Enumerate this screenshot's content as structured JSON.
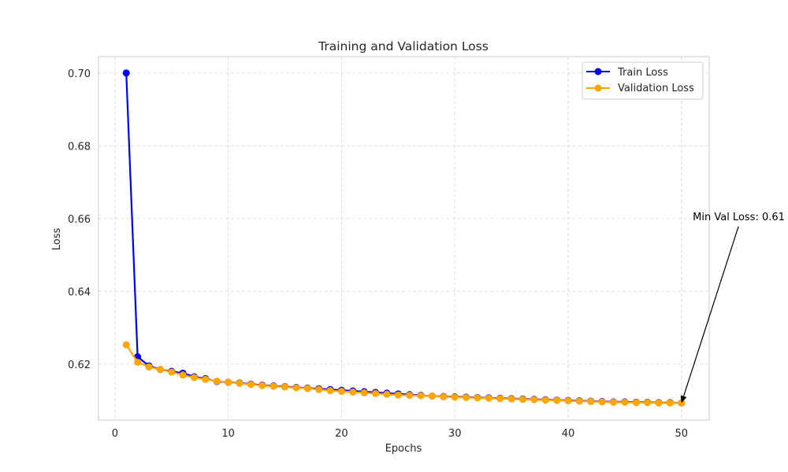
{
  "chart_data": {
    "type": "line",
    "title": "Training and Validation Loss",
    "xlabel": "Epochs",
    "ylabel": "Loss",
    "xlim": [
      -1.45,
      52.45
    ],
    "ylim": [
      0.6046,
      0.7045
    ],
    "xticks": [
      0,
      10,
      20,
      30,
      40,
      50
    ],
    "yticks": [
      0.62,
      0.64,
      0.66,
      0.68,
      0.7
    ],
    "xtick_labels": [
      "0",
      "10",
      "20",
      "30",
      "40",
      "50"
    ],
    "ytick_labels": [
      "0.62",
      "0.64",
      "0.66",
      "0.68",
      "0.70"
    ],
    "grid": true,
    "legend_position": "top-right",
    "x": [
      1,
      2,
      3,
      4,
      5,
      6,
      7,
      8,
      9,
      10,
      11,
      12,
      13,
      14,
      15,
      16,
      17,
      18,
      19,
      20,
      21,
      22,
      23,
      24,
      25,
      26,
      27,
      28,
      29,
      30,
      31,
      32,
      33,
      34,
      35,
      36,
      37,
      38,
      39,
      40,
      41,
      42,
      43,
      44,
      45,
      46,
      47,
      48,
      49,
      50
    ],
    "series": [
      {
        "name": "Train Loss",
        "color": "#0000ff",
        "values": [
          0.7,
          0.622,
          0.6195,
          0.6185,
          0.618,
          0.6175,
          0.6165,
          0.616,
          0.6152,
          0.615,
          0.6148,
          0.6145,
          0.6142,
          0.614,
          0.6138,
          0.6136,
          0.6134,
          0.6132,
          0.613,
          0.6128,
          0.6126,
          0.6124,
          0.6122,
          0.612,
          0.6118,
          0.6116,
          0.6114,
          0.6112,
          0.6111,
          0.611,
          0.6109,
          0.6108,
          0.6107,
          0.6106,
          0.6105,
          0.6104,
          0.6103,
          0.6102,
          0.6101,
          0.61,
          0.6099,
          0.6098,
          0.6097,
          0.6096,
          0.6096,
          0.6095,
          0.6095,
          0.6094,
          0.6094,
          0.6093
        ]
      },
      {
        "name": "Validation Loss",
        "color": "#ffa500",
        "values": [
          0.6253,
          0.6205,
          0.6192,
          0.6185,
          0.6178,
          0.617,
          0.6163,
          0.6158,
          0.6153,
          0.615,
          0.6147,
          0.6144,
          0.6141,
          0.6139,
          0.6137,
          0.6135,
          0.6133,
          0.613,
          0.6127,
          0.6125,
          0.6123,
          0.6121,
          0.6119,
          0.6117,
          0.6115,
          0.6114,
          0.6113,
          0.6112,
          0.611,
          0.6109,
          0.6108,
          0.6107,
          0.6106,
          0.6105,
          0.6104,
          0.6103,
          0.6102,
          0.6101,
          0.61,
          0.6099,
          0.6098,
          0.6097,
          0.6096,
          0.6095,
          0.6095,
          0.6094,
          0.6094,
          0.6093,
          0.6093,
          0.6093
        ]
      }
    ],
    "annotation": {
      "text": "Min Val Loss: 0.61",
      "point": [
        50,
        0.6093
      ],
      "text_anchor": [
        51,
        0.66
      ]
    }
  }
}
